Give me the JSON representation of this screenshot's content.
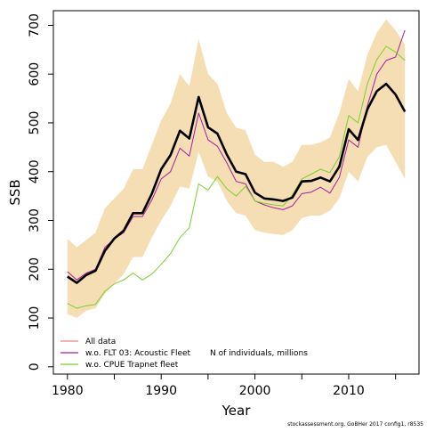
{
  "chart_data": {
    "type": "line",
    "xlabel": "Year",
    "ylabel": "SSB",
    "xlim": [
      1978.5,
      2017.5
    ],
    "ylim": [
      -15,
      730
    ],
    "x_ticks": [
      1980,
      1990,
      2000,
      2010
    ],
    "y_ticks": [
      0,
      100,
      200,
      300,
      400,
      500,
      600,
      700
    ],
    "x": [
      1980,
      1981,
      1982,
      1983,
      1984,
      1985,
      1986,
      1987,
      1988,
      1989,
      1990,
      1991,
      1992,
      1993,
      1994,
      1995,
      1996,
      1997,
      1998,
      1999,
      2000,
      2001,
      2002,
      2003,
      2004,
      2005,
      2006,
      2007,
      2008,
      2009,
      2010,
      2011,
      2012,
      2013,
      2014,
      2015,
      2016
    ],
    "band": {
      "color": "#F5DEB3",
      "upper": [
        262,
        245,
        260,
        275,
        325,
        345,
        365,
        405,
        405,
        455,
        505,
        540,
        600,
        575,
        672,
        600,
        580,
        520,
        490,
        485,
        435,
        420,
        420,
        410,
        420,
        455,
        455,
        460,
        470,
        520,
        590,
        565,
        640,
        685,
        712,
        690,
        660
      ],
      "lower": [
        108,
        100,
        115,
        120,
        150,
        170,
        190,
        225,
        225,
        265,
        300,
        330,
        370,
        365,
        440,
        390,
        380,
        340,
        315,
        310,
        280,
        275,
        272,
        270,
        280,
        305,
        310,
        310,
        320,
        345,
        400,
        380,
        430,
        450,
        455,
        420,
        385
      ]
    },
    "series": [
      {
        "name": "All data",
        "color": "#F08080",
        "hidden_under": "base",
        "values": [
          185,
          172,
          188,
          197,
          238,
          263,
          279,
          315,
          315,
          355,
          405,
          434,
          484,
          468,
          553,
          491,
          478,
          435,
          400,
          395,
          357,
          345,
          343,
          340,
          347,
          380,
          381,
          388,
          380,
          410,
          487,
          465,
          528,
          565,
          580,
          558,
          523
        ]
      },
      {
        "name": "w.o. FLT 03: Acoustic Fleet",
        "color": "#A020A0",
        "values": [
          195,
          178,
          192,
          200,
          245,
          262,
          275,
          308,
          308,
          342,
          385,
          400,
          448,
          432,
          520,
          465,
          452,
          418,
          380,
          375,
          340,
          332,
          326,
          322,
          330,
          355,
          358,
          368,
          356,
          388,
          465,
          450,
          535,
          600,
          628,
          635,
          690
        ]
      },
      {
        "name": "w.o. CPUE Trapnet fleet",
        "color": "#7CCD2F",
        "values": [
          130,
          120,
          125,
          128,
          155,
          170,
          178,
          192,
          178,
          190,
          210,
          232,
          265,
          285,
          375,
          362,
          390,
          365,
          350,
          370,
          340,
          335,
          332,
          330,
          352,
          385,
          395,
          405,
          398,
          430,
          515,
          500,
          580,
          630,
          657,
          645,
          628
        ]
      },
      {
        "name": "",
        "color": "#000000",
        "role": "base",
        "values": [
          185,
          172,
          188,
          197,
          238,
          263,
          279,
          315,
          315,
          355,
          405,
          434,
          484,
          468,
          553,
          491,
          478,
          435,
          400,
          395,
          357,
          345,
          343,
          340,
          347,
          380,
          381,
          388,
          380,
          410,
          487,
          465,
          528,
          565,
          580,
          558,
          523
        ]
      }
    ],
    "annotations": {
      "legend_extra": "N of individuals, millions",
      "credit": "stockassessment.org, GoBHer 2017 config1, r8535"
    },
    "legend_position": "bottom-left",
    "grid": false
  }
}
